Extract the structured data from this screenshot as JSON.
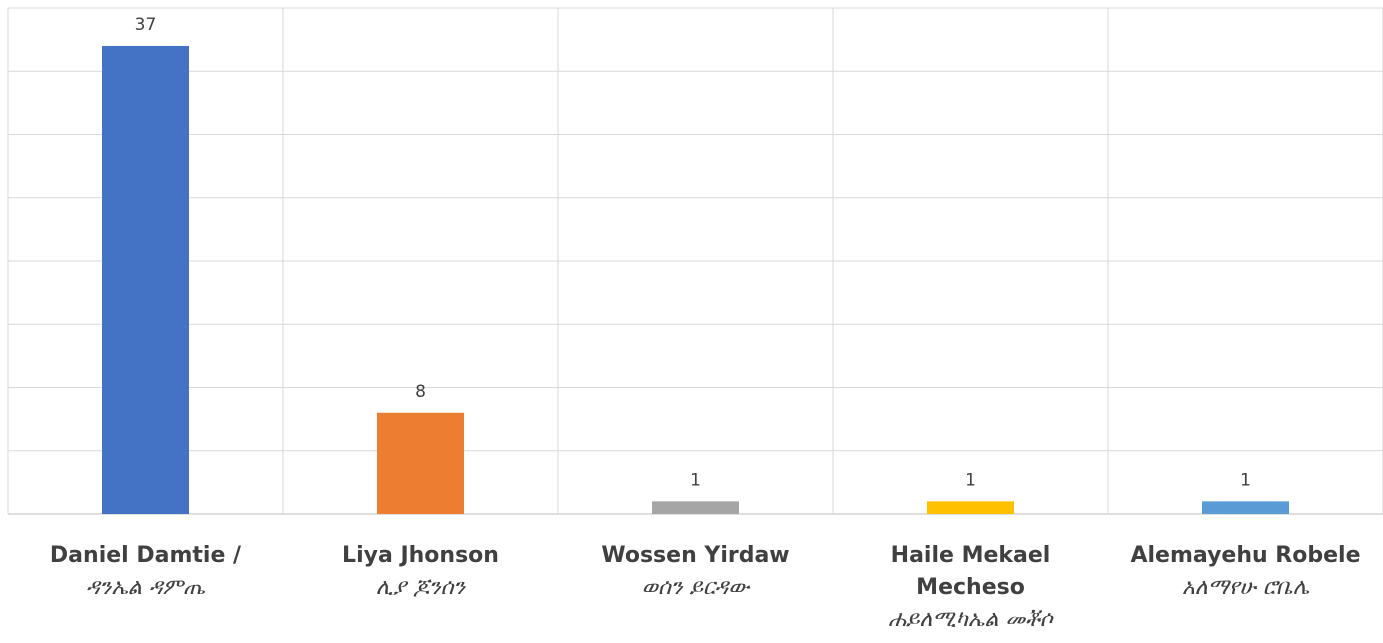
{
  "chart_data": {
    "type": "bar",
    "categories": [
      [
        "Daniel Damtie /",
        "ዳንኤል ዳምጤ"
      ],
      [
        "Liya Jhonson",
        "ሊያ ጆንሰን"
      ],
      [
        "Wossen Yirdaw",
        "ወሰን ይርዳው"
      ],
      [
        "Haile Mekael",
        "Mecheso",
        "ሐይለሚካኤል መቾሶ"
      ],
      [
        "Alemayehu Robele",
        "አለማየሁ ሮቤሌ"
      ]
    ],
    "category_label_text": [
      "Daniel Damtie / ዳንኤል ዳምጤ",
      "Liya Jhonson ሊያ ጆንሰን",
      "Wossen Yirdaw ወሰን ይርዳው",
      "Haile Mekael Mecheso ሐይለሚካኤል መቾሶ",
      "Alemayehu Robele አለማየሁ ሮቤሌ"
    ],
    "values": [
      37,
      8,
      1,
      1,
      1
    ],
    "value_labels": [
      "37",
      "8",
      "1",
      "1",
      "1"
    ],
    "colors": [
      "#4472c4",
      "#ed7d31",
      "#a5a5a5",
      "#ffc000",
      "#5b9bd5"
    ],
    "ylim": [
      0,
      40
    ],
    "grid": true,
    "legend": "none",
    "title": "",
    "xlabel": "",
    "ylabel": ""
  }
}
